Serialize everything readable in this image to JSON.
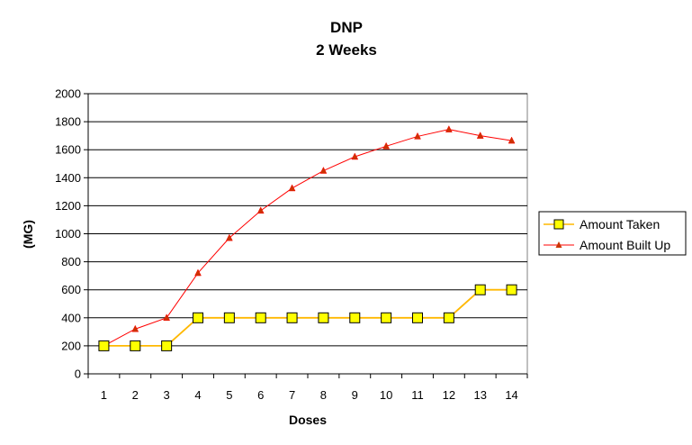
{
  "chart_data": {
    "type": "line",
    "title": "DNP",
    "subtitle": "2 Weeks",
    "xlabel": "Doses",
    "ylabel": "(MG)",
    "x": [
      1,
      2,
      3,
      4,
      5,
      6,
      7,
      8,
      9,
      10,
      11,
      12,
      13,
      14
    ],
    "ylim": [
      0,
      2000
    ],
    "yticks": [
      0,
      200,
      400,
      600,
      800,
      1000,
      1200,
      1400,
      1600,
      1800,
      2000
    ],
    "grid": true,
    "legend_position": "right",
    "series": [
      {
        "name": "Amount Taken",
        "color": "#FFB800",
        "marker": "square",
        "marker_fill": "#FFFF00",
        "values": [
          200,
          200,
          200,
          400,
          400,
          400,
          400,
          400,
          400,
          400,
          400,
          400,
          600,
          600
        ]
      },
      {
        "name": "Amount Built Up",
        "color": "#FF0000",
        "marker": "triangle",
        "marker_fill": "#CC3300",
        "values": [
          200,
          320,
          400,
          720,
          970,
          1165,
          1325,
          1450,
          1550,
          1625,
          1695,
          1745,
          1700,
          1665
        ]
      }
    ]
  }
}
